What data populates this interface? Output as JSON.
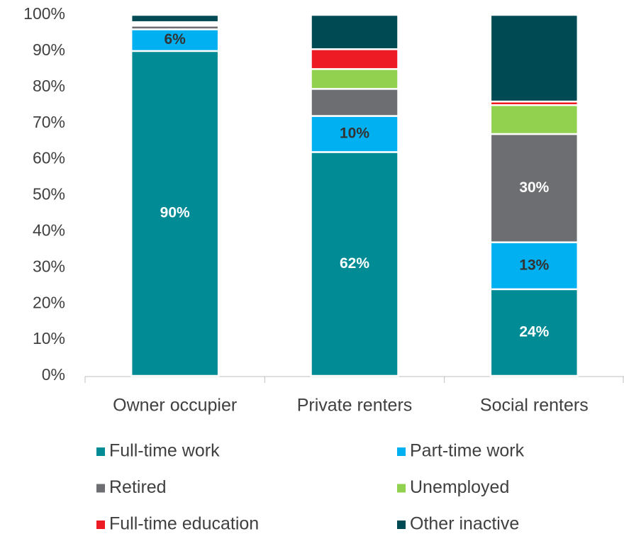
{
  "chart_data": {
    "type": "stacked_bar",
    "categories": [
      "Owner occupier",
      "Private renters",
      "Social renters"
    ],
    "series": [
      {
        "name": "Full-time work",
        "color": "#008b95",
        "label_color": "#ffffff",
        "values": [
          90,
          62,
          24
        ],
        "value_labels": [
          "90%",
          "62%",
          "24%"
        ]
      },
      {
        "name": "Part-time work",
        "color": "#00b0f0",
        "label_color": "#333333",
        "values": [
          6,
          10,
          13
        ],
        "value_labels": [
          "6%",
          "10%",
          "13%"
        ]
      },
      {
        "name": "Retired",
        "color": "#6d6e71",
        "label_color": "#ffffff",
        "values": [
          1,
          7.5,
          30
        ],
        "value_labels": [
          null,
          null,
          "30%"
        ]
      },
      {
        "name": "Unemployed",
        "color": "#92d050",
        "values": [
          0.5,
          5.5,
          8
        ]
      },
      {
        "name": "Full-time education",
        "color": "#ed1c24",
        "values": [
          0.5,
          5.5,
          1
        ]
      },
      {
        "name": "Other inactive",
        "color": "#004a54",
        "values": [
          2,
          9.5,
          24
        ]
      }
    ],
    "ylim": [
      0,
      100
    ],
    "yticks": [
      {
        "value": 0,
        "label": "0%"
      },
      {
        "value": 10,
        "label": "10%"
      },
      {
        "value": 20,
        "label": "20%"
      },
      {
        "value": 30,
        "label": "30%"
      },
      {
        "value": 40,
        "label": "40%"
      },
      {
        "value": 50,
        "label": "50%"
      },
      {
        "value": 60,
        "label": "60%"
      },
      {
        "value": 70,
        "label": "70%"
      },
      {
        "value": 80,
        "label": "80%"
      },
      {
        "value": 90,
        "label": "90%"
      },
      {
        "value": 100,
        "label": "100%"
      }
    ],
    "grid": false,
    "legend": "bottom"
  }
}
